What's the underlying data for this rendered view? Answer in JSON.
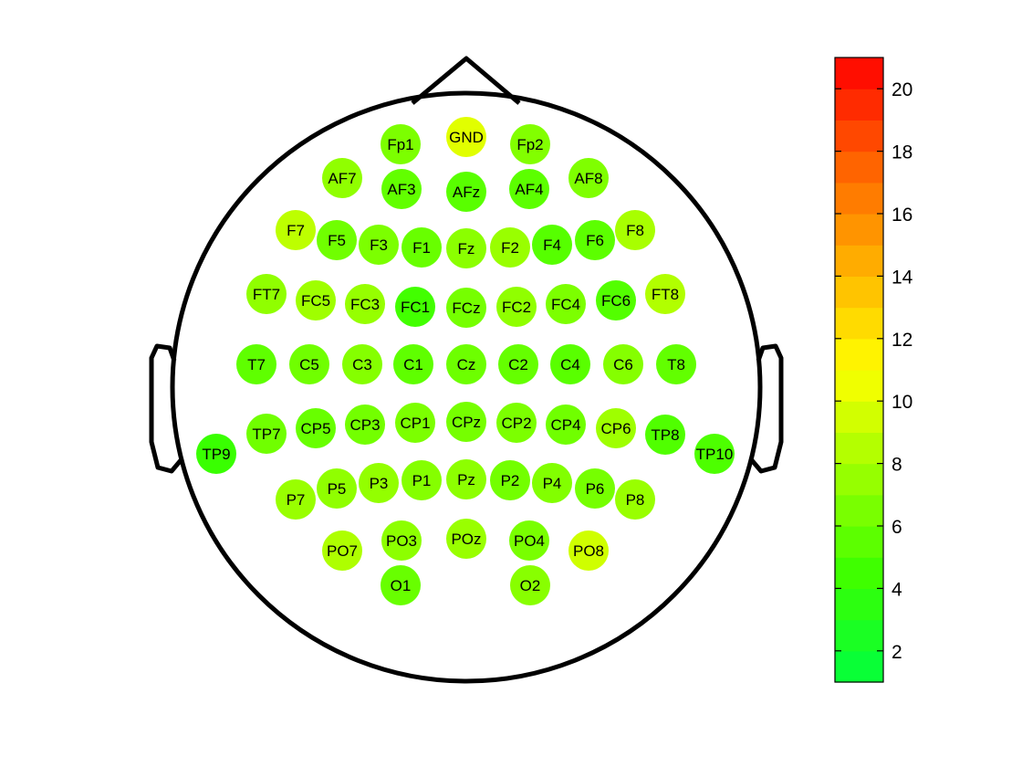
{
  "chart_data": {
    "type": "heatmap",
    "title": "",
    "colorbar": {
      "range": [
        1,
        21
      ],
      "ticks": [
        2,
        4,
        6,
        8,
        10,
        12,
        14,
        16,
        18,
        20
      ],
      "tick_labels": [
        "2",
        "4",
        "6",
        "8",
        "10",
        "12",
        "14",
        "16",
        "18",
        "20"
      ],
      "colors": [
        "#00ff40",
        "#3aff00",
        "#9bff00",
        "#ffff00",
        "#ffb000",
        "#ff6000",
        "#ff0000"
      ]
    },
    "electrodes": [
      {
        "label": "GND",
        "value": 10.0
      },
      {
        "label": "Fp1",
        "value": 6.6
      },
      {
        "label": "Fp2",
        "value": 6.8
      },
      {
        "label": "AF7",
        "value": 7.3
      },
      {
        "label": "AF3",
        "value": 5.7
      },
      {
        "label": "AFz",
        "value": 5.4
      },
      {
        "label": "AF4",
        "value": 5.5
      },
      {
        "label": "AF8",
        "value": 6.7
      },
      {
        "label": "F7",
        "value": 8.8
      },
      {
        "label": "F5",
        "value": 6.2
      },
      {
        "label": "F3",
        "value": 6.6
      },
      {
        "label": "F1",
        "value": 5.9
      },
      {
        "label": "Fz",
        "value": 7.1
      },
      {
        "label": "F2",
        "value": 7.6
      },
      {
        "label": "F4",
        "value": 5.3
      },
      {
        "label": "F6",
        "value": 5.5
      },
      {
        "label": "F8",
        "value": 8.1
      },
      {
        "label": "FT7",
        "value": 7.3
      },
      {
        "label": "FC5",
        "value": 7.8
      },
      {
        "label": "FC3",
        "value": 7.5
      },
      {
        "label": "FC1",
        "value": 4.6
      },
      {
        "label": "FCz",
        "value": 6.4
      },
      {
        "label": "FC2",
        "value": 7.3
      },
      {
        "label": "FC4",
        "value": 6.6
      },
      {
        "label": "FC6",
        "value": 5.2
      },
      {
        "label": "FT8",
        "value": 8.4
      },
      {
        "label": "T7",
        "value": 5.6
      },
      {
        "label": "C5",
        "value": 6.2
      },
      {
        "label": "C3",
        "value": 6.9
      },
      {
        "label": "C1",
        "value": 5.6
      },
      {
        "label": "Cz",
        "value": 6.1
      },
      {
        "label": "C2",
        "value": 5.8
      },
      {
        "label": "C4",
        "value": 5.4
      },
      {
        "label": "C6",
        "value": 6.9
      },
      {
        "label": "T8",
        "value": 5.7
      },
      {
        "label": "TP9",
        "value": 4.3
      },
      {
        "label": "TP7",
        "value": 6.2
      },
      {
        "label": "CP5",
        "value": 5.9
      },
      {
        "label": "CP3",
        "value": 6.3
      },
      {
        "label": "CP1",
        "value": 6.6
      },
      {
        "label": "CPz",
        "value": 6.4
      },
      {
        "label": "CP2",
        "value": 6.6
      },
      {
        "label": "CP4",
        "value": 6.2
      },
      {
        "label": "CP6",
        "value": 7.8
      },
      {
        "label": "TP8",
        "value": 5.1
      },
      {
        "label": "TP10",
        "value": 5.0
      },
      {
        "label": "P7",
        "value": 7.6
      },
      {
        "label": "P5",
        "value": 7.3
      },
      {
        "label": "P3",
        "value": 7.4
      },
      {
        "label": "P1",
        "value": 6.9
      },
      {
        "label": "Pz",
        "value": 7.2
      },
      {
        "label": "P2",
        "value": 6.3
      },
      {
        "label": "P4",
        "value": 6.8
      },
      {
        "label": "P6",
        "value": 6.4
      },
      {
        "label": "P8",
        "value": 7.6
      },
      {
        "label": "PO7",
        "value": 8.3
      },
      {
        "label": "PO3",
        "value": 7.2
      },
      {
        "label": "POz",
        "value": 7.6
      },
      {
        "label": "PO4",
        "value": 6.5
      },
      {
        "label": "PO8",
        "value": 9.4
      },
      {
        "label": "O1",
        "value": 5.9
      },
      {
        "label": "O2",
        "value": 7.0
      }
    ]
  }
}
